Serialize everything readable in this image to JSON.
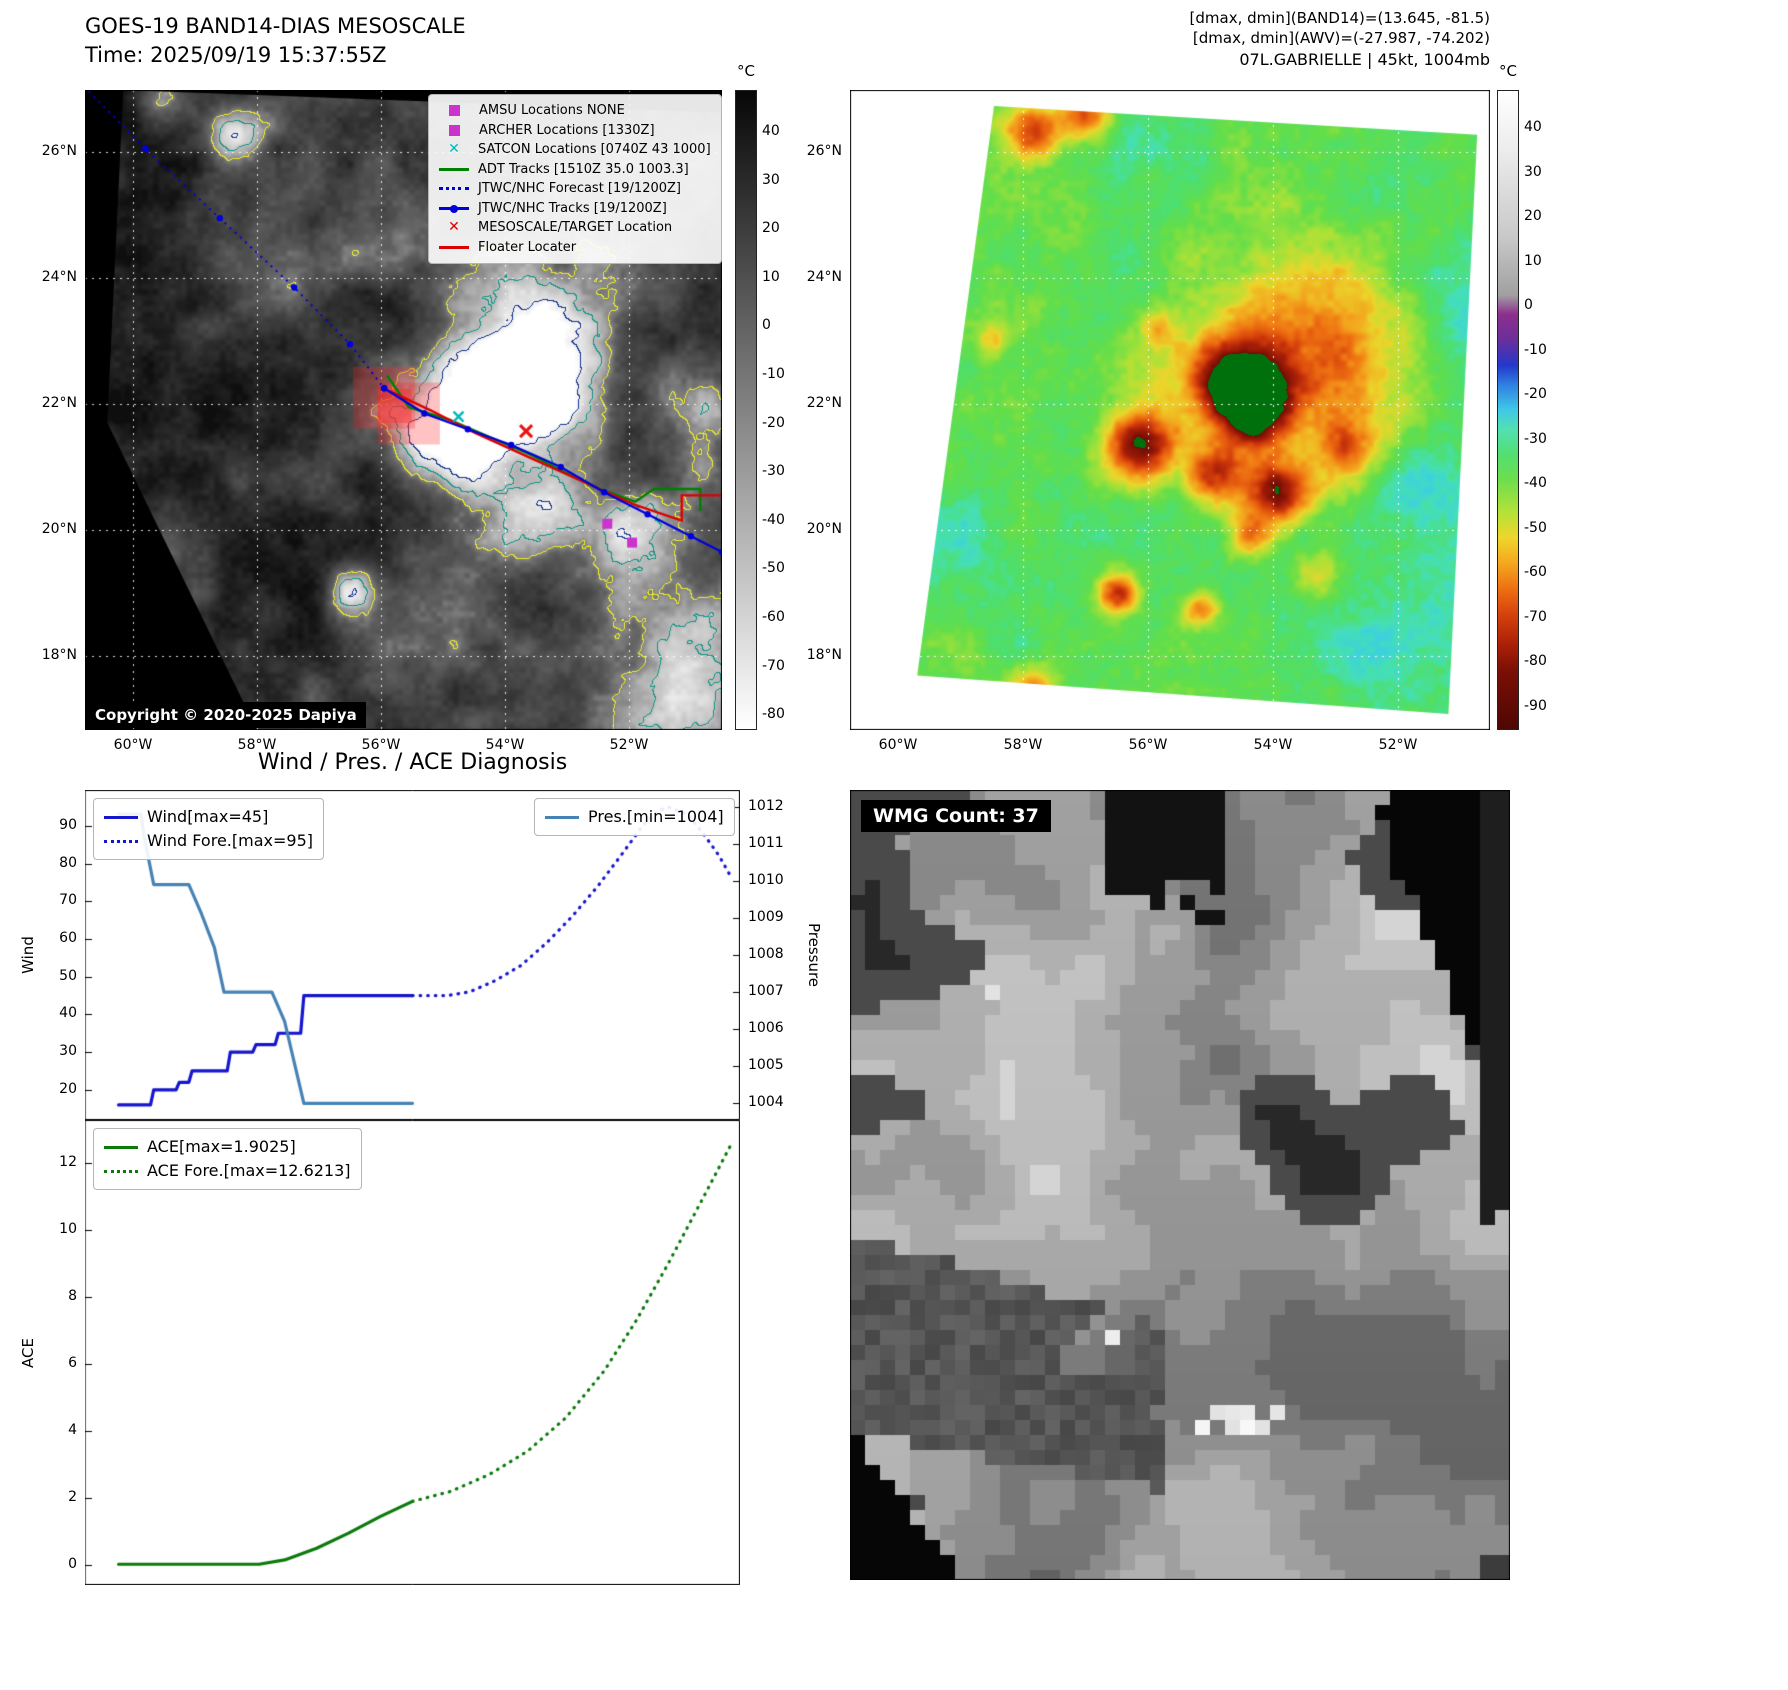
{
  "colors": {
    "wind": "#1515cd",
    "pressure": "#4682b4",
    "ace": "#0a7a0a",
    "forecast_track": "#0000dd",
    "adt": "#008000",
    "floater": "#dd0000",
    "amsu": "#cc33cc",
    "satcon": "#00bbbb"
  },
  "panel_tl": {
    "title1": "GOES-19 BAND14-DIAS MESOSCALE",
    "title2": "Time: 2025/09/19 15:37:55Z",
    "copyright": "Copyright © 2020-2025 Dapiya",
    "colorbar_unit": "°C",
    "colorbar_ticks": [
      40,
      30,
      20,
      10,
      0,
      -10,
      -20,
      -30,
      -40,
      -50,
      -60,
      -70,
      -80
    ],
    "xticks": [
      "60°W",
      "58°W",
      "56°W",
      "54°W",
      "52°W"
    ],
    "yticks": [
      "26°N",
      "24°N",
      "22°N",
      "20°N",
      "18°N"
    ],
    "legend": [
      {
        "marker": "square",
        "color": "#cc33cc",
        "label": "AMSU Locations NONE"
      },
      {
        "marker": "square",
        "color": "#cc33cc",
        "label": "ARCHER Locations [1330Z]"
      },
      {
        "marker": "x",
        "color": "#00bbbb",
        "label": "SATCON Locations [0740Z 43 1000]"
      },
      {
        "marker": "line",
        "color": "#008000",
        "label": "ADT Tracks [1510Z 35.0 1003.3]"
      },
      {
        "marker": "dotted",
        "color": "#0000dd",
        "label": "JTWC/NHC Forecast [19/1200Z]"
      },
      {
        "marker": "linedot",
        "color": "#0000dd",
        "label": "JTWC/NHC Tracks [19/1200Z]"
      },
      {
        "marker": "x",
        "color": "#dd0000",
        "label": "MESOSCALE/TARGET Location"
      },
      {
        "marker": "line",
        "color": "#dd0000",
        "label": "Floater Locater"
      }
    ]
  },
  "panel_tr": {
    "info1": "[dmax, dmin](BAND14)=(13.645, -81.5)",
    "info2": "[dmax, dmin](AWV)=(-27.987, -74.202)",
    "info3": "07L.GABRIELLE | 45kt, 1004mb",
    "colorbar_unit": "°C",
    "colorbar_ticks": [
      40,
      30,
      20,
      10,
      0,
      -10,
      -20,
      -30,
      -40,
      -50,
      -60,
      -70,
      -80,
      -90
    ],
    "xticks": [
      "60°W",
      "58°W",
      "56°W",
      "54°W",
      "52°W"
    ],
    "yticks": [
      "26°N",
      "24°N",
      "22°N",
      "20°N",
      "18°N"
    ]
  },
  "panel_br": {
    "badge": "WMG Count: 37"
  },
  "map_tl": {
    "scan_polygon": [
      [
        0.06,
        0
      ],
      [
        1,
        0.035
      ],
      [
        1,
        1
      ],
      [
        0.27,
        1
      ],
      [
        0.035,
        0.52
      ]
    ],
    "tracks": {
      "forecast": [
        [
          60.95,
          27.2
        ],
        [
          59.8,
          26.05
        ],
        [
          58.6,
          24.95
        ],
        [
          57.4,
          23.85
        ],
        [
          56.5,
          22.95
        ],
        [
          55.95,
          22.25
        ]
      ],
      "jtwc": [
        [
          55.95,
          22.25
        ],
        [
          55.3,
          21.85
        ],
        [
          54.6,
          21.6
        ],
        [
          53.9,
          21.35
        ],
        [
          53.1,
          21.0
        ],
        [
          52.4,
          20.6
        ],
        [
          51.7,
          20.25
        ],
        [
          51.0,
          19.9
        ],
        [
          50.5,
          19.65
        ]
      ],
      "adt": [
        [
          55.9,
          22.45
        ],
        [
          55.55,
          21.95
        ],
        [
          54.9,
          21.75
        ],
        [
          53.6,
          21.2
        ],
        [
          52.6,
          20.7
        ],
        [
          51.9,
          20.45
        ],
        [
          51.6,
          20.65
        ],
        [
          50.85,
          20.65
        ],
        [
          50.85,
          20.3
        ]
      ],
      "floater": [
        [
          55.85,
          22.2
        ],
        [
          55.2,
          21.9
        ],
        [
          54.5,
          21.55
        ],
        [
          53.6,
          21.15
        ],
        [
          52.7,
          20.75
        ],
        [
          51.9,
          20.4
        ],
        [
          51.15,
          20.15
        ],
        [
          51.15,
          20.55
        ],
        [
          50.5,
          20.55
        ]
      ]
    },
    "target_x": [
      53.66,
      21.57
    ],
    "satcon_x": [
      54.75,
      21.8
    ],
    "archer_squares": [
      [
        52.35,
        20.1
      ],
      [
        51.95,
        19.8
      ]
    ],
    "target_boxes": [
      [
        55.95,
        22.1,
        62,
        0.28
      ],
      [
        55.55,
        21.85,
        62,
        0.28
      ],
      [
        55.78,
        21.97,
        34,
        0.42
      ]
    ]
  },
  "map_tr": {
    "scan_polygon": [
      [
        0.225,
        0.025
      ],
      [
        0.98,
        0.07
      ],
      [
        0.935,
        0.975
      ],
      [
        0.105,
        0.915
      ]
    ]
  },
  "chart_data": [
    {
      "type": "line",
      "title": "Wind / Pres. / ACE Diagnosis",
      "ylabel": "Wind",
      "ylabel_right": "Pressure",
      "ylim": [
        12,
        99.5
      ],
      "yticks": [
        90,
        80,
        70,
        60,
        50,
        40,
        30,
        20
      ],
      "ylim_right": [
        1003.55,
        1012.45
      ],
      "yticks_right": [
        1012,
        1011,
        1010,
        1009,
        1008,
        1007,
        1006,
        1005,
        1004
      ],
      "series": [
        {
          "name": "Wind[max=45]",
          "axis": "left",
          "dash": "solid",
          "color": "#1515cd",
          "points": [
            [
              0.04,
              16
            ],
            [
              0.09,
              16
            ],
            [
              0.095,
              20
            ],
            [
              0.13,
              20
            ],
            [
              0.135,
              22
            ],
            [
              0.15,
              22
            ],
            [
              0.155,
              25
            ],
            [
              0.21,
              25
            ],
            [
              0.215,
              30
            ],
            [
              0.25,
              30
            ],
            [
              0.255,
              32
            ],
            [
              0.285,
              32
            ],
            [
              0.29,
              35
            ],
            [
              0.325,
              35
            ],
            [
              0.33,
              45
            ],
            [
              0.5,
              45
            ]
          ]
        },
        {
          "name": "Wind Fore.[max=95]",
          "axis": "left",
          "dash": "dotted",
          "color": "#1515cd",
          "points": [
            [
              0.5,
              45
            ],
            [
              0.555,
              45
            ],
            [
              0.59,
              46
            ],
            [
              0.63,
              49
            ],
            [
              0.67,
              53
            ],
            [
              0.71,
              59
            ],
            [
              0.75,
              66
            ],
            [
              0.79,
              74
            ],
            [
              0.83,
              83
            ],
            [
              0.86,
              90
            ],
            [
              0.885,
              94
            ],
            [
              0.9,
              95
            ],
            [
              0.93,
              93
            ],
            [
              0.955,
              88
            ],
            [
              0.98,
              82
            ],
            [
              1.0,
              76
            ]
          ]
        },
        {
          "name": "Pres.[min=1004]",
          "axis": "right",
          "dash": "solid",
          "color": "#4682b4",
          "points": [
            [
              0.04,
              1011.8
            ],
            [
              0.075,
              1011.8
            ],
            [
              0.08,
              1011.2
            ],
            [
              0.095,
              1009.9
            ],
            [
              0.15,
              1009.9
            ],
            [
              0.17,
              1009.1
            ],
            [
              0.19,
              1008.2
            ],
            [
              0.205,
              1007.0
            ],
            [
              0.28,
              1007.0
            ],
            [
              0.3,
              1006.2
            ],
            [
              0.315,
              1005.1
            ],
            [
              0.33,
              1004.0
            ],
            [
              0.5,
              1004.0
            ]
          ]
        }
      ],
      "legends": [
        {
          "pos": "left",
          "items": [
            {
              "label": "Wind[max=45]",
              "dash": "solid",
              "color": "#1515cd"
            },
            {
              "label": "Wind Fore.[max=95]",
              "dash": "dotted",
              "color": "#1515cd"
            }
          ]
        },
        {
          "pos": "right",
          "items": [
            {
              "label": "Pres.[min=1004]",
              "dash": "solid",
              "color": "#4682b4"
            }
          ]
        }
      ]
    },
    {
      "type": "line",
      "ylabel": "ACE",
      "ylim": [
        -0.6,
        13.3
      ],
      "yticks": [
        12,
        10,
        8,
        6,
        4,
        2,
        0
      ],
      "series": [
        {
          "name": "ACE[max=1.9025]",
          "axis": "left",
          "dash": "solid",
          "color": "#0a7a0a",
          "points": [
            [
              0.04,
              0.02
            ],
            [
              0.26,
              0.02
            ],
            [
              0.3,
              0.15
            ],
            [
              0.35,
              0.5
            ],
            [
              0.4,
              0.95
            ],
            [
              0.45,
              1.45
            ],
            [
              0.5,
              1.9
            ]
          ]
        },
        {
          "name": "ACE Fore.[max=12.6213]",
          "axis": "left",
          "dash": "dotted",
          "color": "#0a7a0a",
          "points": [
            [
              0.5,
              1.9
            ],
            [
              0.56,
              2.2
            ],
            [
              0.62,
              2.7
            ],
            [
              0.68,
              3.4
            ],
            [
              0.74,
              4.4
            ],
            [
              0.8,
              5.8
            ],
            [
              0.85,
              7.3
            ],
            [
              0.9,
              9.0
            ],
            [
              0.95,
              10.8
            ],
            [
              1.0,
              12.62
            ]
          ]
        }
      ],
      "legends": [
        {
          "pos": "left",
          "items": [
            {
              "label": "ACE[max=1.9025]",
              "dash": "solid",
              "color": "#0a7a0a"
            },
            {
              "label": "ACE Fore.[max=12.6213]",
              "dash": "dotted",
              "color": "#0a7a0a"
            }
          ]
        }
      ]
    }
  ]
}
